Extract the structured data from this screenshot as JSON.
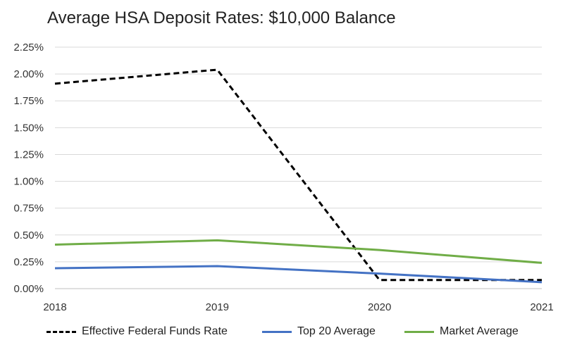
{
  "chart_data": {
    "type": "line",
    "title": "Average HSA Deposit Rates: $10,000 Balance",
    "x": [
      "2018",
      "2019",
      "2020",
      "2021"
    ],
    "y_ticks": [
      "0.00%",
      "0.25%",
      "0.50%",
      "0.75%",
      "1.00%",
      "1.25%",
      "1.50%",
      "1.75%",
      "2.00%",
      "2.25%"
    ],
    "ylim": [
      0,
      2.25
    ],
    "grid": true,
    "legend_position": "bottom",
    "series": [
      {
        "name": "Effective Federal Funds Rate",
        "values": [
          1.91,
          2.04,
          0.08,
          0.08
        ],
        "color": "#000000",
        "style": "dashed"
      },
      {
        "name": "Top 20 Average",
        "values": [
          0.19,
          0.21,
          0.14,
          0.06
        ],
        "color": "#4472C4",
        "style": "solid"
      },
      {
        "name": "Market Average",
        "values": [
          0.41,
          0.45,
          0.36,
          0.24
        ],
        "color": "#70AD47",
        "style": "solid"
      }
    ]
  }
}
